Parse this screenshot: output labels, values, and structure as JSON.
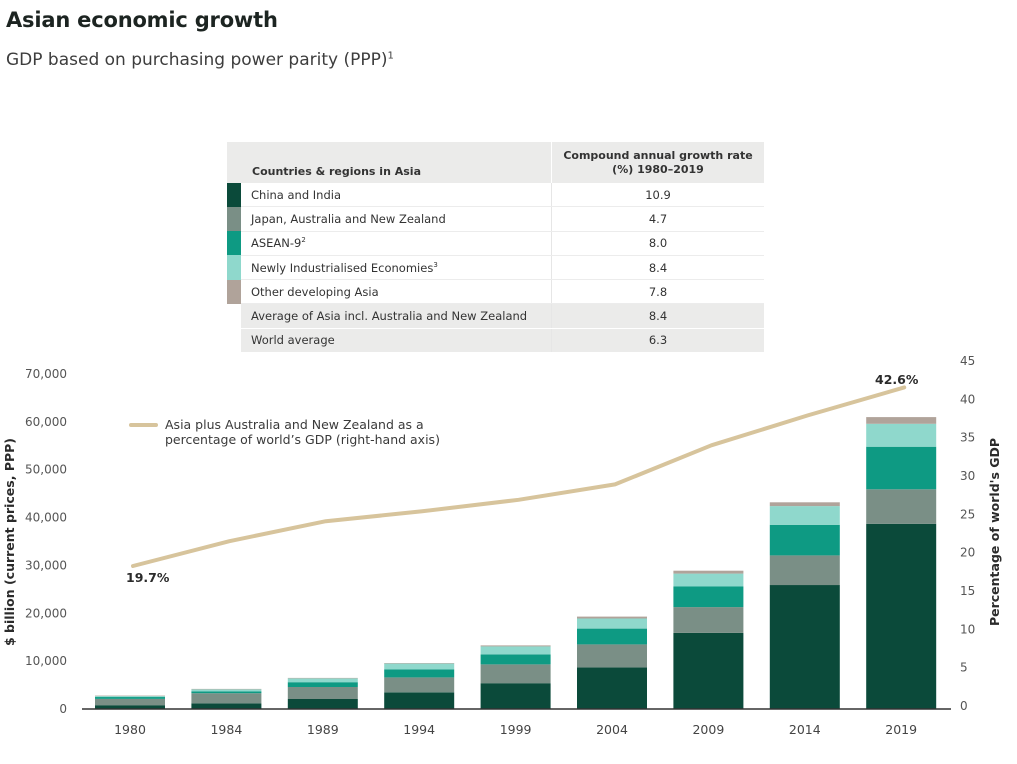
{
  "header": {
    "title": "Asian economic growth",
    "subtitle": "GDP based on purchasing power parity (PPP)",
    "subtitle_footnote": "1"
  },
  "table": {
    "col1_header": "Countries & regions in Asia",
    "col2_header_line1": "Compound annual growth rate",
    "col2_header_line2": "(%) 1980–2019",
    "rows": [
      {
        "label": "China and India",
        "sup": "",
        "value": "10.9",
        "color": "#0b4a3a"
      },
      {
        "label": "Japan, Australia and New Zealand",
        "sup": "",
        "value": "4.7",
        "color": "#7a8f86"
      },
      {
        "label": "ASEAN-9",
        "sup": "2",
        "value": "8.0",
        "color": "#0e9a83"
      },
      {
        "label": "Newly Industrialised Economies",
        "sup": "3",
        "value": "8.4",
        "color": "#8fd8cc"
      },
      {
        "label": "Other developing Asia",
        "sup": "",
        "value": "7.8",
        "color": "#b0a39a"
      },
      {
        "label": "Average of Asia incl. Australia and New Zealand",
        "sup": "",
        "value": "8.4",
        "color": null
      },
      {
        "label": "World average",
        "sup": "",
        "value": "6.3",
        "color": null
      }
    ]
  },
  "chart_data": {
    "type": "bar",
    "stacked": true,
    "categories": [
      "1980",
      "1984",
      "1989",
      "1994",
      "1999",
      "2004",
      "2009",
      "2014",
      "2019"
    ],
    "ylabel": "$ billion (current prices, PPP)",
    "ylim": [
      0,
      70000
    ],
    "yticks": [
      "0",
      "10,000",
      "20,000",
      "30,000",
      "40,000",
      "50,000",
      "60,000",
      "70,000"
    ],
    "y2label": "Percentage of world's GDP",
    "y2lim": [
      0,
      45
    ],
    "y2ticks": [
      "0",
      "5",
      "10",
      "15",
      "20",
      "25",
      "30",
      "35",
      "40",
      "45"
    ],
    "grid": false,
    "series": [
      {
        "name": "China and India",
        "color": "#0b4a3a",
        "values": [
          800,
          1200,
          2100,
          3500,
          5400,
          8700,
          15900,
          25900,
          38700
        ]
      },
      {
        "name": "Japan, Australia and New Zealand",
        "color": "#7a8f86",
        "values": [
          1300,
          2100,
          2500,
          3100,
          3900,
          4800,
          5400,
          6200,
          7200
        ]
      },
      {
        "name": "ASEAN-9",
        "color": "#0e9a83",
        "values": [
          400,
          400,
          1000,
          1700,
          2100,
          3300,
          4300,
          6400,
          8900
        ]
      },
      {
        "name": "Newly Industrialised Economies",
        "color": "#8fd8cc",
        "values": [
          200,
          400,
          800,
          1200,
          1700,
          2100,
          2700,
          3900,
          4800
        ]
      },
      {
        "name": "Other developing Asia",
        "color": "#b0a39a",
        "values": [
          100,
          100,
          100,
          100,
          200,
          400,
          600,
          800,
          1400
        ]
      }
    ],
    "line": {
      "name": "Asia plus Australia and New Zealand as a percentage of world's GDP (right-hand axis)",
      "legend_line1": "Asia plus Australia and New Zealand as a",
      "legend_line2": "percentage of world’s GDP  (right-hand axis)",
      "color": "#d7c49c",
      "axis": "right",
      "values": [
        19.7,
        21.5,
        24.1,
        25.4,
        26.9,
        28.9,
        34.0,
        37.9,
        42.6
      ],
      "labels": {
        "first": "19.7%",
        "last": "42.6%"
      }
    },
    "legend_placement": "top-left"
  }
}
